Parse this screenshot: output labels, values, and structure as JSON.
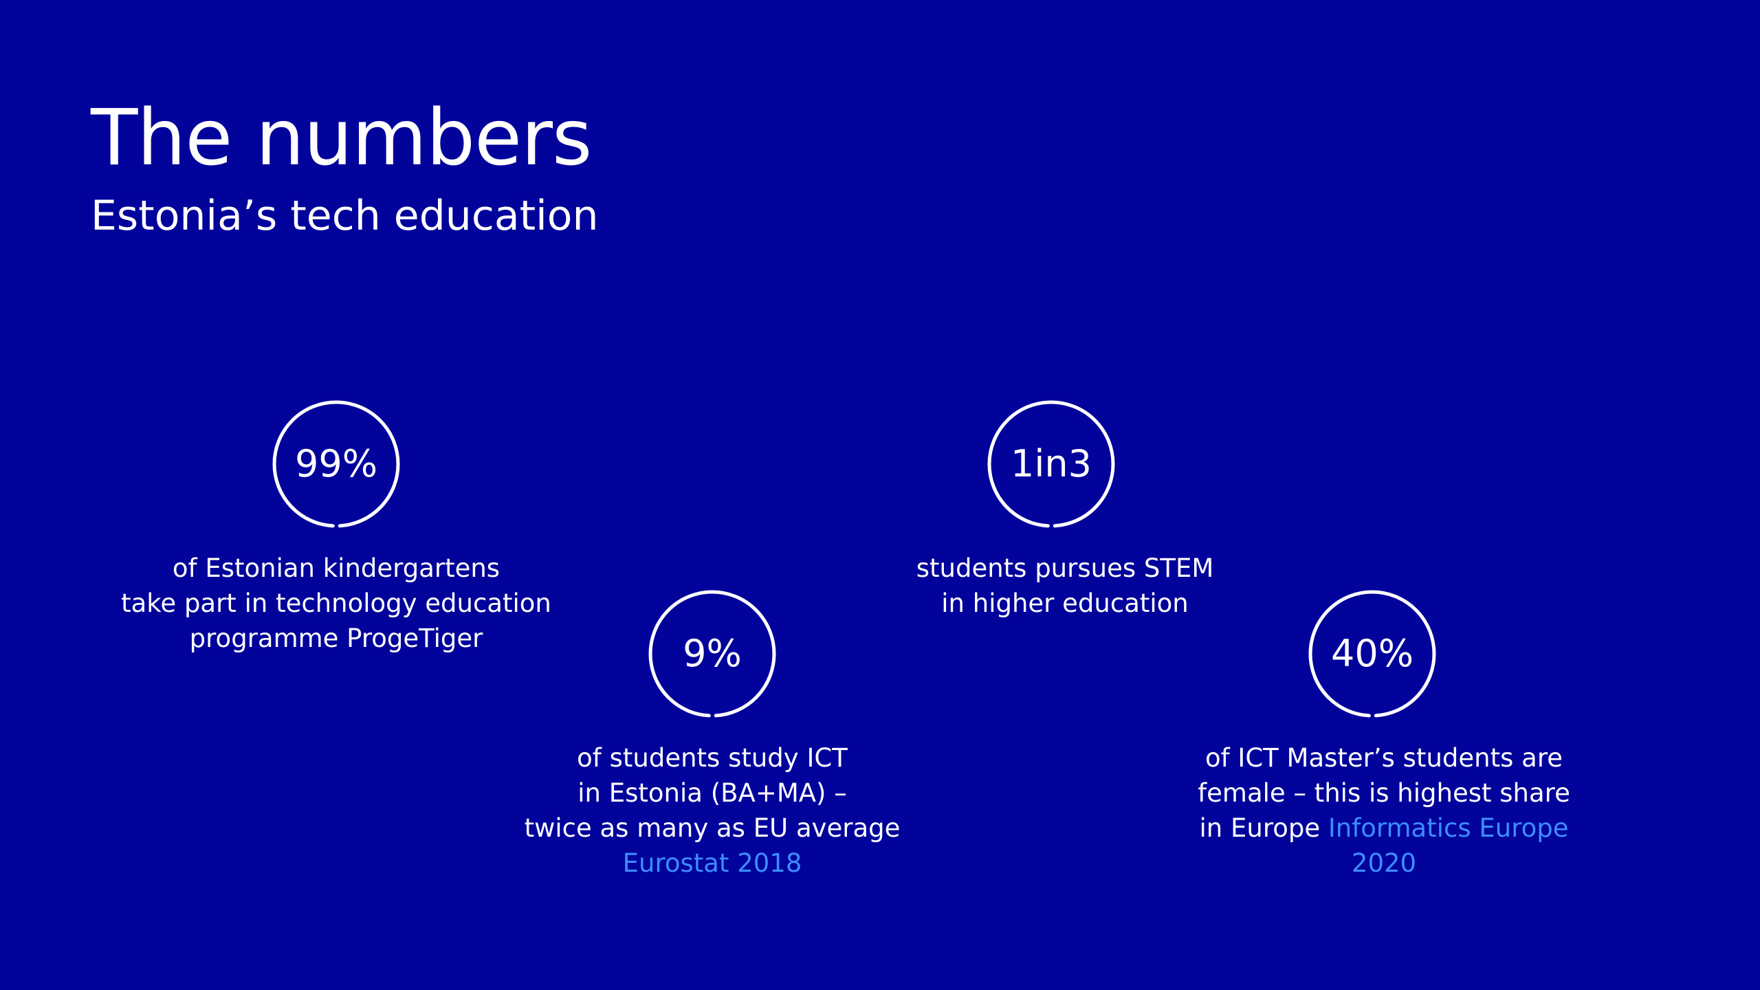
{
  "slide": {
    "title": "The numbers",
    "subtitle": "Estonia’s tech education"
  },
  "stats": [
    {
      "value": "99%",
      "caption_lines": [
        "of Estonian kindergartens",
        "take part in technology education",
        "programme ProgeTiger"
      ]
    },
    {
      "value": "9%",
      "caption_lines": [
        "of students study ICT",
        "in Estonia (BA+MA) –",
        "twice  as many as EU average"
      ],
      "source": "Eurostat 2018"
    },
    {
      "value": "1in3",
      "caption_lines": [
        "students pursues STEM",
        "in higher education"
      ]
    },
    {
      "value": "40%",
      "caption_lines": [
        "of ICT Master’s students are",
        "female – this is highest share"
      ],
      "caption_last_prefix": "in Europe ",
      "source_part1": "Informatics Europe",
      "source_part2": "2020"
    }
  ],
  "colors": {
    "background": "#01039b",
    "text": "#ffffff",
    "source_link": "#3d8cff"
  },
  "icons": {
    "ring": "circle-ring-icon"
  }
}
